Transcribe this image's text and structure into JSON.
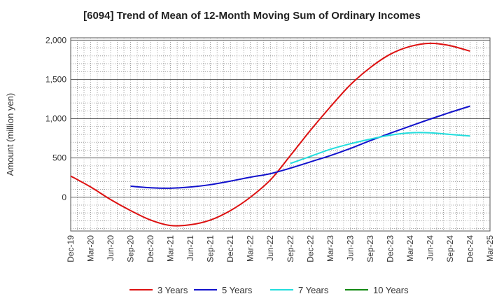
{
  "chart_data": {
    "type": "line",
    "title": "[6094]  Trend of Mean of 12-Month Moving Sum of Ordinary Incomes",
    "xlabel": "",
    "ylabel": "Amount (million yen)",
    "ylim": [
      -430,
      2030
    ],
    "yticks": [
      0,
      500,
      1000,
      1500,
      2000
    ],
    "ytick_labels": [
      "0",
      "500",
      "1,000",
      "1,500",
      "2,000"
    ],
    "categories": [
      "Dec-19",
      "Mar-20",
      "Jun-20",
      "Sep-20",
      "Dec-20",
      "Mar-21",
      "Jun-21",
      "Sep-21",
      "Dec-21",
      "Mar-22",
      "Jun-22",
      "Sep-22",
      "Dec-22",
      "Mar-23",
      "Jun-23",
      "Sep-23",
      "Dec-23",
      "Mar-24",
      "Jun-24",
      "Sep-24",
      "Dec-24",
      "Mar-25"
    ],
    "grid": true,
    "legend_position": "bottom",
    "series": [
      {
        "name": "3 Years",
        "color": "#dd1111",
        "values": [
          270,
          130,
          -30,
          -170,
          -290,
          -360,
          -350,
          -290,
          -170,
          0,
          220,
          530,
          850,
          1150,
          1430,
          1650,
          1820,
          1920,
          1960,
          1930,
          1860,
          null
        ]
      },
      {
        "name": "5 Years",
        "color": "#1111cc",
        "values": [
          null,
          null,
          null,
          140,
          120,
          115,
          130,
          160,
          205,
          255,
          300,
          370,
          450,
          530,
          620,
          720,
          815,
          905,
          995,
          1080,
          1160,
          null
        ]
      },
      {
        "name": "7 Years",
        "color": "#22dddd",
        "values": [
          null,
          null,
          null,
          null,
          null,
          null,
          null,
          null,
          null,
          null,
          null,
          430,
          520,
          610,
          680,
          740,
          790,
          820,
          820,
          800,
          780,
          null
        ]
      },
      {
        "name": "10 Years",
        "color": "#118811",
        "values": [
          null,
          null,
          null,
          null,
          null,
          null,
          null,
          null,
          null,
          null,
          null,
          null,
          null,
          null,
          null,
          null,
          null,
          null,
          null,
          null,
          null,
          null
        ]
      }
    ]
  }
}
